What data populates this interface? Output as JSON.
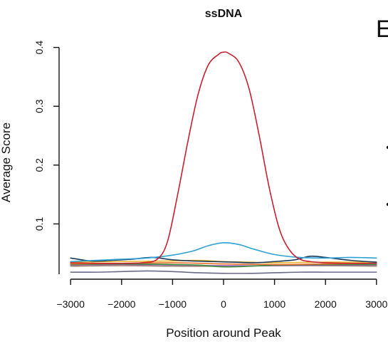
{
  "chart_data": {
    "type": "line",
    "title": "ssDNA",
    "xlabel": "Position around Peak",
    "ylabel": "Average Score",
    "xlim": [
      -3100,
      3100
    ],
    "ylim": [
      0.0,
      0.41
    ],
    "x_ticks": [
      -3000,
      -2000,
      -1000,
      0,
      1000,
      2000,
      3000
    ],
    "x_tick_labels": [
      "−3000",
      "−2000",
      "−1000",
      "0",
      "1000",
      "2000",
      "3000"
    ],
    "y_ticks": [
      0.1,
      0.2,
      0.3,
      0.4
    ],
    "y_tick_labels": [
      "0.1",
      "0.2",
      "0.3",
      "0.4"
    ],
    "grid": false,
    "series": [
      {
        "color": "#c8202f",
        "x": [
          -3000,
          -2500,
          -2000,
          -1600,
          -1300,
          -1100,
          -900,
          -700,
          -500,
          -300,
          -100,
          0,
          100,
          300,
          500,
          700,
          900,
          1100,
          1300,
          1500,
          1700,
          2000,
          2500,
          3000
        ],
        "values": [
          0.034,
          0.033,
          0.033,
          0.034,
          0.04,
          0.07,
          0.15,
          0.24,
          0.32,
          0.37,
          0.388,
          0.392,
          0.39,
          0.375,
          0.33,
          0.25,
          0.16,
          0.09,
          0.055,
          0.04,
          0.036,
          0.034,
          0.033,
          0.033
        ]
      },
      {
        "color": "#2ea1d6",
        "x": [
          -3000,
          -2500,
          -2000,
          -1500,
          -1000,
          -600,
          -300,
          0,
          300,
          600,
          1000,
          1500,
          2000,
          2500,
          3000
        ],
        "values": [
          0.036,
          0.038,
          0.04,
          0.042,
          0.047,
          0.054,
          0.063,
          0.068,
          0.065,
          0.057,
          0.048,
          0.043,
          0.042,
          0.043,
          0.042
        ]
      },
      {
        "color": "#1a3a5c",
        "x": [
          -3000,
          -2600,
          -2200,
          -1800,
          -1400,
          -1000,
          -600,
          -200,
          200,
          600,
          1000,
          1400,
          1700,
          2000,
          2500,
          3000
        ],
        "values": [
          0.042,
          0.037,
          0.038,
          0.04,
          0.043,
          0.039,
          0.037,
          0.036,
          0.035,
          0.034,
          0.036,
          0.039,
          0.045,
          0.043,
          0.038,
          0.035
        ]
      },
      {
        "color": "#e9b32a",
        "x": [
          -3000,
          -2000,
          -1000,
          -500,
          0,
          500,
          1000,
          2000,
          3000
        ],
        "values": [
          0.035,
          0.036,
          0.037,
          0.038,
          0.036,
          0.035,
          0.034,
          0.035,
          0.035
        ]
      },
      {
        "color": "#e8702a",
        "x": [
          -3000,
          -2000,
          -1000,
          0,
          1000,
          2000,
          3000
        ],
        "values": [
          0.032,
          0.033,
          0.034,
          0.032,
          0.031,
          0.032,
          0.033
        ]
      },
      {
        "color": "#3a8f3a",
        "x": [
          -3000,
          -2000,
          -1000,
          -500,
          0,
          500,
          1000,
          2000,
          3000
        ],
        "values": [
          0.031,
          0.032,
          0.031,
          0.03,
          0.027,
          0.028,
          0.03,
          0.031,
          0.031
        ]
      },
      {
        "color": "#9b59b6",
        "x": [
          -3000,
          -2000,
          -1000,
          0,
          1000,
          2000,
          3000
        ],
        "values": [
          0.03,
          0.031,
          0.03,
          0.029,
          0.029,
          0.03,
          0.03
        ]
      },
      {
        "color": "#a58b7a",
        "x": [
          -3000,
          -2000,
          -1000,
          0,
          1000,
          2000,
          3000
        ],
        "values": [
          0.028,
          0.029,
          0.028,
          0.028,
          0.029,
          0.029,
          0.028
        ]
      },
      {
        "color": "#6a6a8a",
        "x": [
          -3000,
          -2500,
          -2000,
          -1500,
          -1000,
          -500,
          0,
          500,
          1000,
          1500,
          2000,
          2500,
          3000
        ],
        "values": [
          0.018,
          0.018,
          0.019,
          0.02,
          0.019,
          0.017,
          0.016,
          0.016,
          0.017,
          0.018,
          0.018,
          0.018,
          0.018
        ]
      }
    ]
  },
  "panel_letter": "E"
}
